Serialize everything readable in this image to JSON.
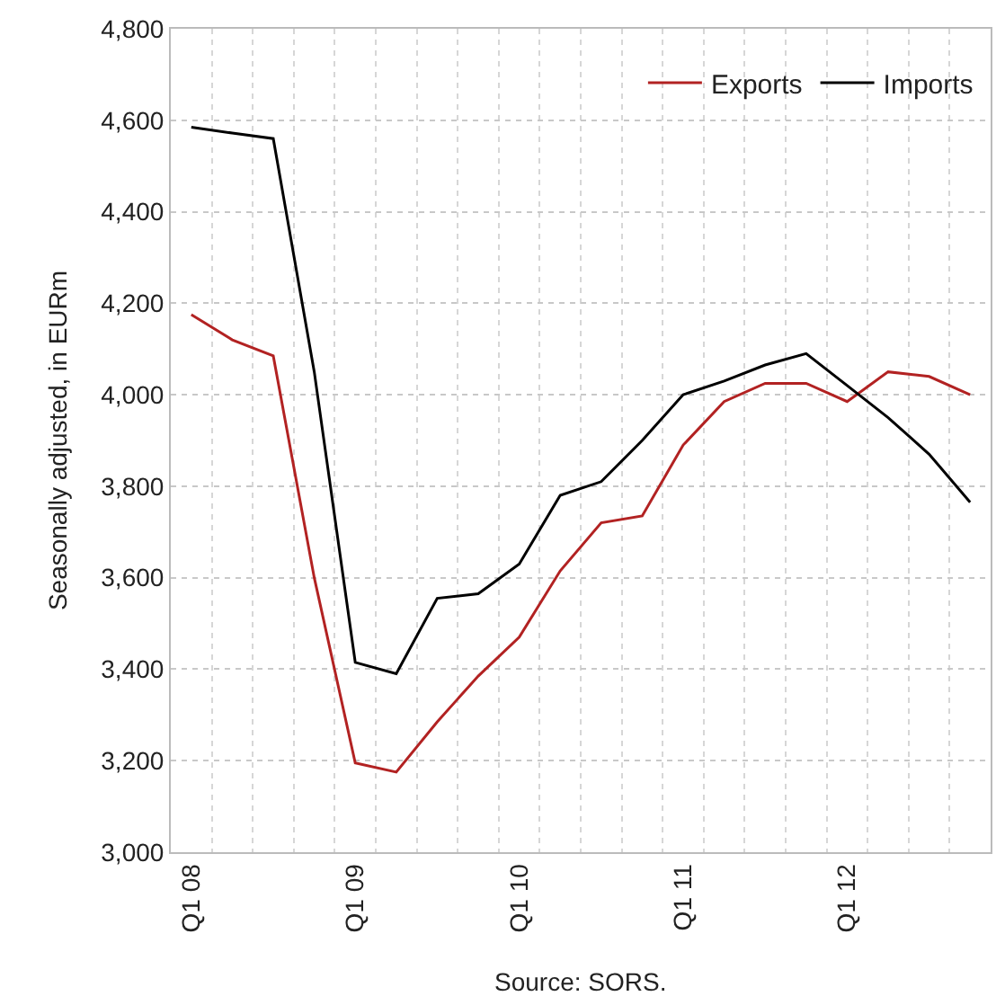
{
  "chart_data": {
    "type": "line",
    "ylabel": "Seasonally adjusted, in EURm",
    "annotations": [
      "Source: SORS."
    ],
    "categories": [
      "Q1 08",
      null,
      null,
      null,
      "Q1 09",
      null,
      null,
      null,
      "Q1 10",
      null,
      null,
      null,
      "Q1 11",
      null,
      null,
      null,
      "Q1 12",
      null,
      null,
      null
    ],
    "series": [
      {
        "name": "Exports",
        "color": "#b22222",
        "values": [
          4175,
          4120,
          4085,
          3600,
          3195,
          3175,
          3285,
          3385,
          3470,
          3615,
          3720,
          3735,
          3890,
          3985,
          4025,
          4025,
          3985,
          4050,
          4040,
          4000
        ]
      },
      {
        "name": "Imports",
        "color": "#000000",
        "values": [
          4585,
          4572,
          4560,
          4050,
          3415,
          3390,
          3555,
          3565,
          3630,
          3780,
          3810,
          3900,
          4000,
          4030,
          4065,
          4090,
          4020,
          3950,
          3870,
          3765
        ]
      }
    ],
    "ylim": [
      3000,
      4800
    ],
    "yticks": [
      {
        "value": 3000,
        "label": "3,000"
      },
      {
        "value": 3200,
        "label": "3,200"
      },
      {
        "value": 3400,
        "label": "3,400"
      },
      {
        "value": 3600,
        "label": "3,600"
      },
      {
        "value": 3800,
        "label": "3,800"
      },
      {
        "value": 4000,
        "label": "4,000"
      },
      {
        "value": 4200,
        "label": "4,200"
      },
      {
        "value": 4400,
        "label": "4,400"
      },
      {
        "value": 4600,
        "label": "4,600"
      },
      {
        "value": 4800,
        "label": "4,800"
      }
    ],
    "grid": true,
    "legend": "top right",
    "marker": "none",
    "line_style": "solid"
  }
}
